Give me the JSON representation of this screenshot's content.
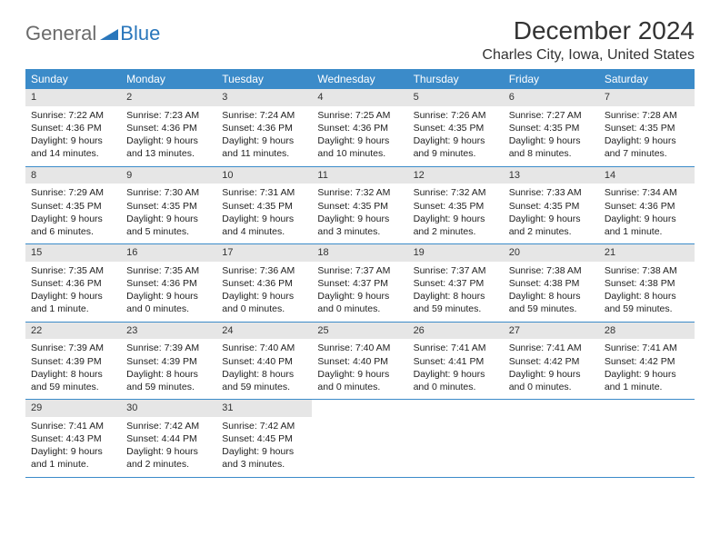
{
  "logo": {
    "text1": "General",
    "text2": "Blue"
  },
  "title": "December 2024",
  "location": "Charles City, Iowa, United States",
  "colors": {
    "header_bg": "#3b8bc9",
    "header_text": "#ffffff",
    "daynum_bg": "#e6e6e6",
    "rule": "#3b8bc9",
    "body_text": "#222222"
  },
  "weekdays": [
    "Sunday",
    "Monday",
    "Tuesday",
    "Wednesday",
    "Thursday",
    "Friday",
    "Saturday"
  ],
  "weeks": [
    [
      {
        "n": "1",
        "sr": "7:22 AM",
        "ss": "4:36 PM",
        "d1": "Daylight: 9 hours",
        "d2": "and 14 minutes."
      },
      {
        "n": "2",
        "sr": "7:23 AM",
        "ss": "4:36 PM",
        "d1": "Daylight: 9 hours",
        "d2": "and 13 minutes."
      },
      {
        "n": "3",
        "sr": "7:24 AM",
        "ss": "4:36 PM",
        "d1": "Daylight: 9 hours",
        "d2": "and 11 minutes."
      },
      {
        "n": "4",
        "sr": "7:25 AM",
        "ss": "4:36 PM",
        "d1": "Daylight: 9 hours",
        "d2": "and 10 minutes."
      },
      {
        "n": "5",
        "sr": "7:26 AM",
        "ss": "4:35 PM",
        "d1": "Daylight: 9 hours",
        "d2": "and 9 minutes."
      },
      {
        "n": "6",
        "sr": "7:27 AM",
        "ss": "4:35 PM",
        "d1": "Daylight: 9 hours",
        "d2": "and 8 minutes."
      },
      {
        "n": "7",
        "sr": "7:28 AM",
        "ss": "4:35 PM",
        "d1": "Daylight: 9 hours",
        "d2": "and 7 minutes."
      }
    ],
    [
      {
        "n": "8",
        "sr": "7:29 AM",
        "ss": "4:35 PM",
        "d1": "Daylight: 9 hours",
        "d2": "and 6 minutes."
      },
      {
        "n": "9",
        "sr": "7:30 AM",
        "ss": "4:35 PM",
        "d1": "Daylight: 9 hours",
        "d2": "and 5 minutes."
      },
      {
        "n": "10",
        "sr": "7:31 AM",
        "ss": "4:35 PM",
        "d1": "Daylight: 9 hours",
        "d2": "and 4 minutes."
      },
      {
        "n": "11",
        "sr": "7:32 AM",
        "ss": "4:35 PM",
        "d1": "Daylight: 9 hours",
        "d2": "and 3 minutes."
      },
      {
        "n": "12",
        "sr": "7:32 AM",
        "ss": "4:35 PM",
        "d1": "Daylight: 9 hours",
        "d2": "and 2 minutes."
      },
      {
        "n": "13",
        "sr": "7:33 AM",
        "ss": "4:35 PM",
        "d1": "Daylight: 9 hours",
        "d2": "and 2 minutes."
      },
      {
        "n": "14",
        "sr": "7:34 AM",
        "ss": "4:36 PM",
        "d1": "Daylight: 9 hours",
        "d2": "and 1 minute."
      }
    ],
    [
      {
        "n": "15",
        "sr": "7:35 AM",
        "ss": "4:36 PM",
        "d1": "Daylight: 9 hours",
        "d2": "and 1 minute."
      },
      {
        "n": "16",
        "sr": "7:35 AM",
        "ss": "4:36 PM",
        "d1": "Daylight: 9 hours",
        "d2": "and 0 minutes."
      },
      {
        "n": "17",
        "sr": "7:36 AM",
        "ss": "4:36 PM",
        "d1": "Daylight: 9 hours",
        "d2": "and 0 minutes."
      },
      {
        "n": "18",
        "sr": "7:37 AM",
        "ss": "4:37 PM",
        "d1": "Daylight: 9 hours",
        "d2": "and 0 minutes."
      },
      {
        "n": "19",
        "sr": "7:37 AM",
        "ss": "4:37 PM",
        "d1": "Daylight: 8 hours",
        "d2": "and 59 minutes."
      },
      {
        "n": "20",
        "sr": "7:38 AM",
        "ss": "4:38 PM",
        "d1": "Daylight: 8 hours",
        "d2": "and 59 minutes."
      },
      {
        "n": "21",
        "sr": "7:38 AM",
        "ss": "4:38 PM",
        "d1": "Daylight: 8 hours",
        "d2": "and 59 minutes."
      }
    ],
    [
      {
        "n": "22",
        "sr": "7:39 AM",
        "ss": "4:39 PM",
        "d1": "Daylight: 8 hours",
        "d2": "and 59 minutes."
      },
      {
        "n": "23",
        "sr": "7:39 AM",
        "ss": "4:39 PM",
        "d1": "Daylight: 8 hours",
        "d2": "and 59 minutes."
      },
      {
        "n": "24",
        "sr": "7:40 AM",
        "ss": "4:40 PM",
        "d1": "Daylight: 8 hours",
        "d2": "and 59 minutes."
      },
      {
        "n": "25",
        "sr": "7:40 AM",
        "ss": "4:40 PM",
        "d1": "Daylight: 9 hours",
        "d2": "and 0 minutes."
      },
      {
        "n": "26",
        "sr": "7:41 AM",
        "ss": "4:41 PM",
        "d1": "Daylight: 9 hours",
        "d2": "and 0 minutes."
      },
      {
        "n": "27",
        "sr": "7:41 AM",
        "ss": "4:42 PM",
        "d1": "Daylight: 9 hours",
        "d2": "and 0 minutes."
      },
      {
        "n": "28",
        "sr": "7:41 AM",
        "ss": "4:42 PM",
        "d1": "Daylight: 9 hours",
        "d2": "and 1 minute."
      }
    ],
    [
      {
        "n": "29",
        "sr": "7:41 AM",
        "ss": "4:43 PM",
        "d1": "Daylight: 9 hours",
        "d2": "and 1 minute."
      },
      {
        "n": "30",
        "sr": "7:42 AM",
        "ss": "4:44 PM",
        "d1": "Daylight: 9 hours",
        "d2": "and 2 minutes."
      },
      {
        "n": "31",
        "sr": "7:42 AM",
        "ss": "4:45 PM",
        "d1": "Daylight: 9 hours",
        "d2": "and 3 minutes."
      },
      null,
      null,
      null,
      null
    ]
  ]
}
